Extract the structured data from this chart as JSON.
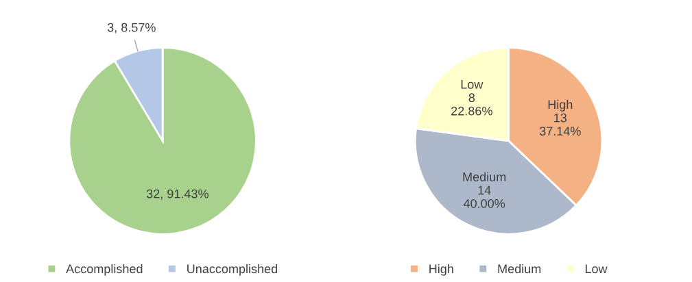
{
  "chart_data": [
    {
      "type": "pie",
      "categories": [
        "Accomplished",
        "Unaccomplished"
      ],
      "values": [
        32,
        3
      ],
      "colors": [
        "#a9d18e",
        "#b4c7e7"
      ],
      "value_labels": [
        "32, 91.43%",
        "3, 8.57%"
      ],
      "legend": "bottom"
    },
    {
      "type": "pie",
      "categories": [
        "High",
        "Medium",
        "Low"
      ],
      "values": [
        13,
        14,
        8
      ],
      "colors": [
        "#f4b183",
        "#adb9ca",
        "#ffffcc"
      ],
      "value_labels": [
        "High\n13\n37.14%",
        "Medium\n14\n40.00%",
        "Low\n8\n22.86%"
      ],
      "legend": "bottom"
    }
  ]
}
